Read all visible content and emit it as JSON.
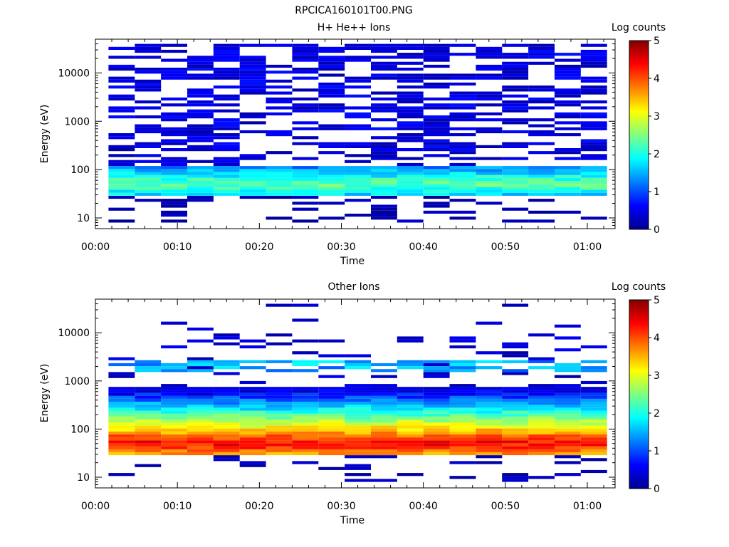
{
  "figure_title": "RPCICA160101T00.PNG",
  "chart_data": [
    {
      "type": "heatmap",
      "title": "H+ He++ Ions",
      "xlabel": "Time",
      "ylabel": "Energy (eV)",
      "x_tick_labels": [
        "00:00",
        "00:10",
        "00:20",
        "00:30",
        "00:40",
        "00:50",
        "01:00"
      ],
      "y_tick_labels": [
        "10",
        "100",
        "1000",
        "10000"
      ],
      "y_scale": "log",
      "ylim": [
        6,
        50000
      ],
      "xlim_minutes": [
        0,
        63
      ],
      "colorbar": {
        "label": "Log counts",
        "ticks": [
          "0",
          "1",
          "2",
          "3",
          "4",
          "5"
        ],
        "range": [
          0,
          5
        ],
        "colormap": "jet"
      },
      "time_columns_minutes": [
        3.2,
        6.4,
        9.6,
        12.8,
        16.0,
        19.2,
        22.4,
        25.6,
        28.8,
        32.0,
        35.2,
        38.4,
        41.6,
        44.8,
        48.0,
        51.2,
        54.4,
        57.6,
        60.8
      ],
      "profile": {
        "peak_energy_ev": 50,
        "peak_log_counts": 2.4,
        "band_energy_ev": [
          30,
          120
        ],
        "high_energy_background_log_counts": 0.2
      }
    },
    {
      "type": "heatmap",
      "title": "Other Ions",
      "xlabel": "Time",
      "ylabel": "Energy (eV)",
      "x_tick_labels": [
        "00:00",
        "00:10",
        "00:20",
        "00:30",
        "00:40",
        "00:50",
        "01:00"
      ],
      "y_tick_labels": [
        "10",
        "100",
        "1000",
        "10000"
      ],
      "y_scale": "log",
      "ylim": [
        6,
        50000
      ],
      "xlim_minutes": [
        0,
        63
      ],
      "colorbar": {
        "label": "Log counts",
        "ticks": [
          "0",
          "1",
          "2",
          "3",
          "4",
          "5"
        ],
        "range": [
          0,
          5
        ],
        "colormap": "jet"
      },
      "time_columns_minutes": [
        3.2,
        6.4,
        9.6,
        12.8,
        16.0,
        19.2,
        22.4,
        25.6,
        28.8,
        32.0,
        35.2,
        38.4,
        41.6,
        44.8,
        48.0,
        51.2,
        54.4,
        57.6,
        60.8
      ],
      "profile": {
        "peak_energy_ev": 50,
        "peak_log_counts": 4.4,
        "band_energy_ev": [
          30,
          700
        ],
        "secondary_band_energy_ev": [
          1500,
          2600
        ],
        "secondary_band_log_counts": 1.3
      }
    }
  ]
}
